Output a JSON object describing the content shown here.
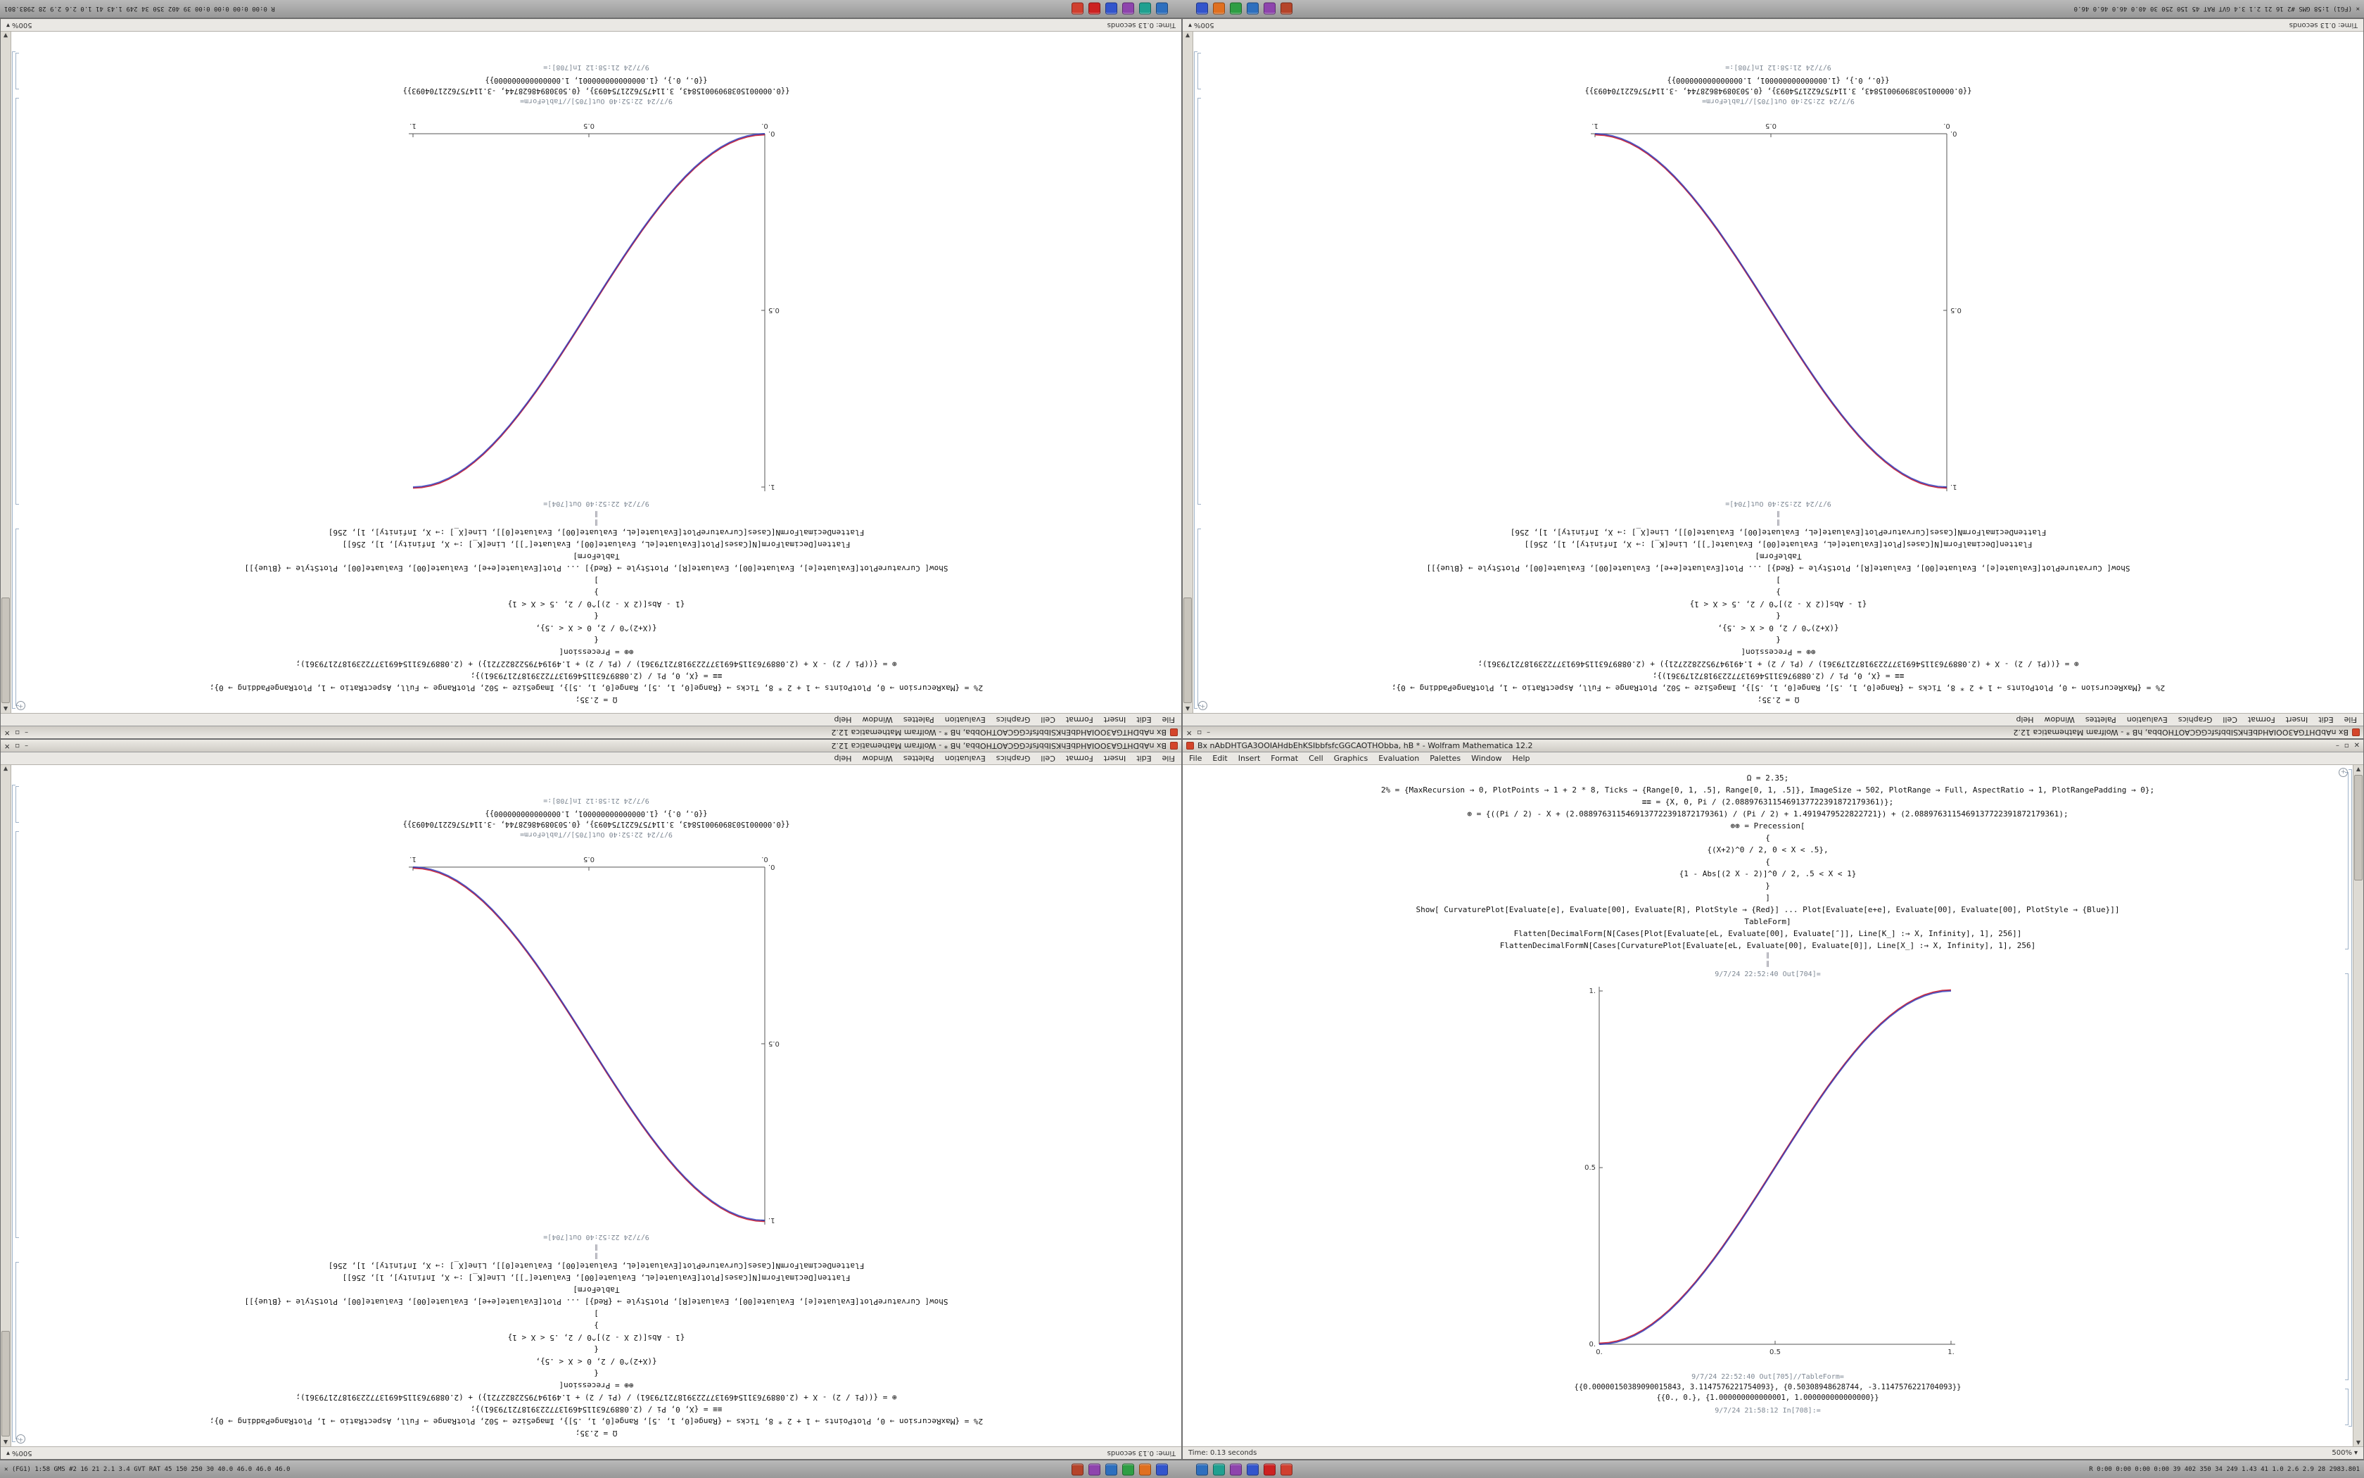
{
  "window_chrome": {
    "title": "Bx  nAbDHTGA3OOIAHdbEhKSIbbfsfcGGCAOTHObba, hB * - Wolfram Mathematica 12.2",
    "menu": [
      "File",
      "Edit",
      "Insert",
      "Format",
      "Cell",
      "Graphics",
      "Evaluation",
      "Palettes",
      "Window",
      "Help"
    ],
    "status_left": "Time: 0.13 seconds",
    "zoom": "500%",
    "minimize_glyph": "–",
    "maximize_glyph": "▫",
    "close_glyph": "✕"
  },
  "notebook": {
    "separator": "∥",
    "code_lines": [
      "Ω = 2.35;",
      "2% = {MaxRecursion → 0, PlotPoints → 1 + 2 * 8, Ticks → {Range[0, 1, .5], Range[0, 1, .5]}, ImageSize → 502, PlotRange → Full, AspectRatio → 1, PlotRangePadding → 0};",
      "≡≡ = {X, 0, Pi / (2.0889763115469137722391872179361)};",
      "⊕ = {((Pi / 2) - X + (2.0889763115469137722391872179361) / (Pi / 2) + 1.4919479522822721}) + (2.0889763115469137722391872179361);",
      "⊕⊕ = Precession[",
      "{",
      "{(X+2)^0 / 2, 0 < X < .5},",
      "{",
      "{1 - Abs[(2 X - 2)]^0 / 2, .5 < X < 1}",
      "}",
      "]",
      "Show[ CurvaturePlot[Evaluate[e], Evaluate[00], Evaluate[R], PlotStyle → {Red}]  ...  Plot[Evaluate[e+e], Evaluate[00], Evaluate[00], PlotStyle → {Blue}]]",
      "TableForm]",
      "Flatten[DecimalForm[N[Cases[Plot[Evaluate[eL, Evaluate[00], Evaluate[″]], Line[K_] :→ X, Infinity], 1], 256]]",
      "FlattenDecimalFormN[Cases[CurvaturePlot[Evaluate[eL, Evaluate[00], Evaluate[0]], Line[X_] :→ X, Infinity], 1], 256]"
    ],
    "out_plot_label": "9/7/24 22:52:40 Out[704]=",
    "out_table_label": "9/7/24 22:52:40 Out[705]//TableForm=",
    "table_rows": [
      "{{0.00000150389090015843, 3.1147576221754093}, {0.50308948628744, -3.1147576221704093}}",
      "{{0., 0.}, {1.000000000000001, 1.000000000000000}}"
    ],
    "next_in_label": "9/7/24 21:58:12 In[708]:="
  },
  "chart_data": {
    "type": "line",
    "title": "",
    "xlabel": "",
    "ylabel": "",
    "xlim": [
      0,
      1
    ],
    "ylim": [
      0,
      1
    ],
    "x_tick_labels": [
      "0.",
      "0.5",
      "1."
    ],
    "y_tick_labels": [
      "0.",
      "0.5",
      "1."
    ],
    "grid": false,
    "legend": "none",
    "series_colors": {
      "red_curve": "#cc1122",
      "blue_curve": "#2233bb"
    },
    "samples_increasing": [
      0,
      0.0015,
      0.0062,
      0.0138,
      0.0245,
      0.0381,
      0.0545,
      0.0737,
      0.0955,
      0.1198,
      0.1464,
      0.1753,
      0.2061,
      0.2388,
      0.273,
      0.3087,
      0.3455,
      0.3833,
      0.4218,
      0.4608,
      0.5,
      0.5392,
      0.5782,
      0.6167,
      0.6545,
      0.6913,
      0.727,
      0.7612,
      0.7939,
      0.8247,
      0.8536,
      0.8802,
      0.9045,
      0.9263,
      0.9455,
      0.9619,
      0.9755,
      0.9862,
      0.9938,
      0.9985,
      1
    ],
    "note_decreasing": "decreasing variant is 1 - samples_increasing"
  },
  "desktop": {
    "windows": [
      {
        "id": "top-left",
        "orientation": "rotated",
        "variant": "increasing"
      },
      {
        "id": "top-right",
        "orientation": "rotated",
        "variant": "decreasing"
      },
      {
        "id": "bottom-left",
        "orientation": "flipped",
        "variant": "decreasing"
      },
      {
        "id": "bottom-right",
        "orientation": "normal",
        "variant": "increasing"
      }
    ],
    "tray_groups": [
      [
        "#b5442a",
        "#8e44ad",
        "#2e6fbe",
        "#2e9e44",
        "#e07020",
        "#3355cc"
      ],
      [
        "#2e6fbe",
        "#20a090",
        "#8e44ad",
        "#3355cc",
        "#cc2222",
        "#d04030"
      ]
    ],
    "top_panel": {
      "left_text": "✕ (FG1)  1:58 GMS #2 16 21 2.1 3.4 GVT RAT 45 150 250 30 40.0 46.0 46.0 46.0",
      "right_text": "R 0:00 0:00 0:00 0:00 39 402 350 34 249 1.43 41 1.0 2.6 2.9 28 2983.801"
    },
    "bottom_panel": {
      "left_text": "✕ (FG1)  1:58 GMS #2 16 21 2.1 3.4 GVT RAT 45 150 250 30 40.0 46.0 46.0 46.0",
      "right_text": "R 0:00 0:00 0:00 0:00 39 402 350 34 249 1.43 41 1.0 2.6 2.9 28 2983.801"
    }
  }
}
